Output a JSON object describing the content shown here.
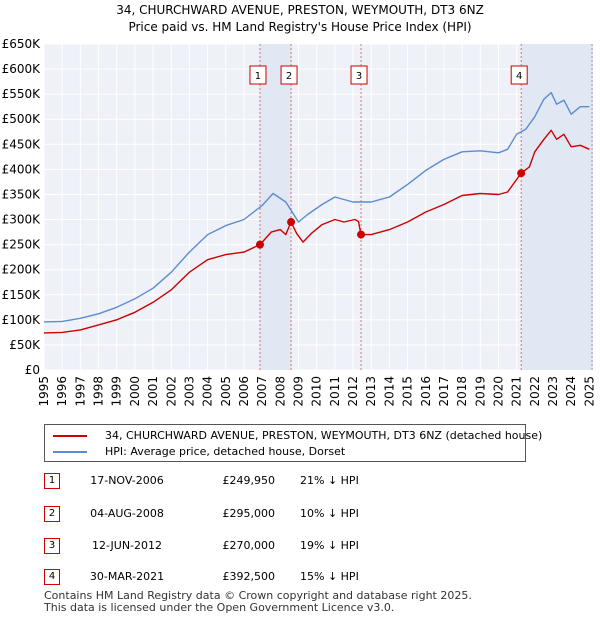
{
  "header": {
    "title_line1": "34, CHURCHWARD AVENUE, PRESTON, WEYMOUTH, DT3 6NZ",
    "title_line2": "Price paid vs. HM Land Registry's House Price Index (HPI)"
  },
  "chart_data": {
    "type": "line",
    "title": "34, CHURCHWARD AVENUE, PRESTON, WEYMOUTH, DT3 6NZ — Price paid vs. HM Land Registry's House Price Index (HPI)",
    "xlabel": "",
    "ylabel": "",
    "xlim": [
      1995,
      2025.2
    ],
    "ylim": [
      0,
      650000
    ],
    "y_ticks": [
      {
        "value": 0,
        "label": "£0"
      },
      {
        "value": 50000,
        "label": "£50K"
      },
      {
        "value": 100000,
        "label": "£100K"
      },
      {
        "value": 150000,
        "label": "£150K"
      },
      {
        "value": 200000,
        "label": "£200K"
      },
      {
        "value": 250000,
        "label": "£250K"
      },
      {
        "value": 300000,
        "label": "£300K"
      },
      {
        "value": 350000,
        "label": "£350K"
      },
      {
        "value": 400000,
        "label": "£400K"
      },
      {
        "value": 450000,
        "label": "£450K"
      },
      {
        "value": 500000,
        "label": "£500K"
      },
      {
        "value": 550000,
        "label": "£550K"
      },
      {
        "value": 600000,
        "label": "£600K"
      },
      {
        "value": 650000,
        "label": "£650K"
      }
    ],
    "x_ticks": [
      "1995",
      "1996",
      "1997",
      "1998",
      "1999",
      "2000",
      "2001",
      "2002",
      "2003",
      "2004",
      "2005",
      "2006",
      "2007",
      "2008",
      "2009",
      "2010",
      "2011",
      "2012",
      "2013",
      "2014",
      "2015",
      "2016",
      "2017",
      "2018",
      "2019",
      "2020",
      "2021",
      "2022",
      "2023",
      "2024",
      "2025"
    ],
    "grid": true,
    "series": [
      {
        "name": "34, CHURCHWARD AVENUE, PRESTON, WEYMOUTH, DT3 6NZ (detached house)",
        "color": "#cc0000",
        "points": [
          [
            1995.0,
            74000
          ],
          [
            1996.0,
            75000
          ],
          [
            1997.0,
            80000
          ],
          [
            1998.0,
            90000
          ],
          [
            1999.0,
            100000
          ],
          [
            2000.0,
            115000
          ],
          [
            2001.0,
            135000
          ],
          [
            2002.0,
            160000
          ],
          [
            2003.0,
            195000
          ],
          [
            2004.0,
            220000
          ],
          [
            2005.0,
            230000
          ],
          [
            2006.0,
            235000
          ],
          [
            2006.88,
            249950
          ],
          [
            2007.5,
            275000
          ],
          [
            2008.0,
            280000
          ],
          [
            2008.3,
            270000
          ],
          [
            2008.59,
            295000
          ],
          [
            2008.9,
            272000
          ],
          [
            2009.25,
            255000
          ],
          [
            2009.7,
            272000
          ],
          [
            2010.3,
            290000
          ],
          [
            2011.0,
            300000
          ],
          [
            2011.5,
            295000
          ],
          [
            2012.1,
            300000
          ],
          [
            2012.3,
            296000
          ],
          [
            2012.44,
            270000
          ],
          [
            2013.0,
            270000
          ],
          [
            2014.0,
            280000
          ],
          [
            2015.0,
            295000
          ],
          [
            2016.0,
            315000
          ],
          [
            2017.0,
            330000
          ],
          [
            2018.0,
            348000
          ],
          [
            2019.0,
            352000
          ],
          [
            2020.0,
            350000
          ],
          [
            2020.5,
            355000
          ],
          [
            2021.25,
            392500
          ],
          [
            2021.7,
            405000
          ],
          [
            2022.0,
            435000
          ],
          [
            2022.5,
            460000
          ],
          [
            2022.9,
            478000
          ],
          [
            2023.2,
            460000
          ],
          [
            2023.6,
            470000
          ],
          [
            2024.0,
            445000
          ],
          [
            2024.5,
            448000
          ],
          [
            2025.0,
            440000
          ]
        ]
      },
      {
        "name": "HPI: Average price, detached house, Dorset",
        "color": "#5b8ccf",
        "points": [
          [
            1995.0,
            96000
          ],
          [
            1996.0,
            97000
          ],
          [
            1997.0,
            103000
          ],
          [
            1998.0,
            112000
          ],
          [
            1999.0,
            125000
          ],
          [
            2000.0,
            142000
          ],
          [
            2001.0,
            163000
          ],
          [
            2002.0,
            195000
          ],
          [
            2003.0,
            235000
          ],
          [
            2004.0,
            270000
          ],
          [
            2005.0,
            288000
          ],
          [
            2006.0,
            300000
          ],
          [
            2007.0,
            328000
          ],
          [
            2007.6,
            352000
          ],
          [
            2008.3,
            335000
          ],
          [
            2009.0,
            295000
          ],
          [
            2009.5,
            310000
          ],
          [
            2010.3,
            330000
          ],
          [
            2011.0,
            345000
          ],
          [
            2012.0,
            335000
          ],
          [
            2013.0,
            335000
          ],
          [
            2014.0,
            345000
          ],
          [
            2015.0,
            370000
          ],
          [
            2016.0,
            398000
          ],
          [
            2017.0,
            420000
          ],
          [
            2018.0,
            435000
          ],
          [
            2019.0,
            437000
          ],
          [
            2020.0,
            433000
          ],
          [
            2020.5,
            440000
          ],
          [
            2021.0,
            470000
          ],
          [
            2021.5,
            480000
          ],
          [
            2022.0,
            505000
          ],
          [
            2022.5,
            540000
          ],
          [
            2022.9,
            553000
          ],
          [
            2023.2,
            530000
          ],
          [
            2023.6,
            538000
          ],
          [
            2024.0,
            510000
          ],
          [
            2024.5,
            525000
          ],
          [
            2025.0,
            525000
          ]
        ]
      }
    ],
    "annotations": [
      {
        "id": "1",
        "date": 2006.88,
        "price": 249950
      },
      {
        "id": "2",
        "date": 2008.59,
        "price": 295000
      },
      {
        "id": "3",
        "date": 2012.44,
        "price": 270000
      },
      {
        "id": "4",
        "date": 2021.25,
        "price": 392500
      }
    ]
  },
  "legend": {
    "property_label": "34, CHURCHWARD AVENUE, PRESTON, WEYMOUTH, DT3 6NZ (detached house)",
    "hpi_label": "HPI: Average price, detached house, Dorset",
    "property_color": "#cc0000",
    "hpi_color": "#5b8ccf"
  },
  "sales": [
    {
      "id": "1",
      "date": "17-NOV-2006",
      "price": "£249,950",
      "hpi": "21% ↓ HPI"
    },
    {
      "id": "2",
      "date": "04-AUG-2008",
      "price": "£295,000",
      "hpi": "10% ↓ HPI"
    },
    {
      "id": "3",
      "date": "12-JUN-2012",
      "price": "£270,000",
      "hpi": "19% ↓ HPI"
    },
    {
      "id": "4",
      "date": "30-MAR-2021",
      "price": "£392,500",
      "hpi": "15% ↓ HPI"
    }
  ],
  "footer": {
    "line1": "Contains HM Land Registry data © Crown copyright and database right 2025.",
    "line2": "This data is licensed under the Open Government Licence v3.0."
  }
}
